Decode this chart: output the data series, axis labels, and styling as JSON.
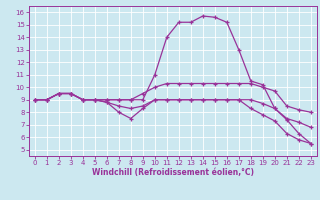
{
  "xlabel": "Windchill (Refroidissement éolien,°C)",
  "xlim": [
    -0.5,
    23.5
  ],
  "ylim": [
    4.5,
    16.5
  ],
  "yticks": [
    5,
    6,
    7,
    8,
    9,
    10,
    11,
    12,
    13,
    14,
    15,
    16
  ],
  "xticks": [
    0,
    1,
    2,
    3,
    4,
    5,
    6,
    7,
    8,
    9,
    10,
    11,
    12,
    13,
    14,
    15,
    16,
    17,
    18,
    19,
    20,
    21,
    22,
    23
  ],
  "color": "#993399",
  "bg_color": "#cce8f0",
  "grid_color": "#ffffff",
  "lines": [
    {
      "x": [
        0,
        1,
        2,
        3,
        4,
        5,
        6,
        7,
        8,
        9,
        10,
        11,
        12,
        13,
        14,
        15,
        16,
        17,
        18,
        19,
        20,
        21,
        22,
        23
      ],
      "y": [
        9.0,
        9.0,
        9.5,
        9.5,
        9.0,
        9.0,
        9.0,
        9.0,
        9.0,
        9.0,
        11.0,
        14.0,
        15.2,
        15.2,
        15.7,
        15.6,
        15.2,
        13.0,
        10.5,
        10.2,
        8.3,
        7.4,
        6.3,
        5.5
      ]
    },
    {
      "x": [
        0,
        1,
        2,
        3,
        4,
        5,
        6,
        7,
        8,
        9,
        10,
        11,
        12,
        13,
        14,
        15,
        16,
        17,
        18,
        19,
        20,
        21,
        22,
        23
      ],
      "y": [
        9.0,
        9.0,
        9.5,
        9.5,
        9.0,
        9.0,
        9.0,
        9.0,
        9.0,
        9.5,
        10.0,
        10.3,
        10.3,
        10.3,
        10.3,
        10.3,
        10.3,
        10.3,
        10.3,
        10.0,
        9.7,
        8.5,
        8.2,
        8.0
      ]
    },
    {
      "x": [
        0,
        1,
        2,
        3,
        4,
        5,
        6,
        7,
        8,
        9,
        10,
        11,
        12,
        13,
        14,
        15,
        16,
        17,
        18,
        19,
        20,
        21,
        22,
        23
      ],
      "y": [
        9.0,
        9.0,
        9.5,
        9.5,
        9.0,
        9.0,
        8.8,
        8.5,
        8.3,
        8.5,
        9.0,
        9.0,
        9.0,
        9.0,
        9.0,
        9.0,
        9.0,
        9.0,
        9.0,
        8.7,
        8.3,
        7.5,
        7.2,
        6.8
      ]
    },
    {
      "x": [
        0,
        1,
        2,
        3,
        4,
        5,
        6,
        7,
        8,
        9,
        10,
        11,
        12,
        13,
        14,
        15,
        16,
        17,
        18,
        19,
        20,
        21,
        22,
        23
      ],
      "y": [
        9.0,
        9.0,
        9.5,
        9.5,
        9.0,
        9.0,
        8.8,
        8.0,
        7.5,
        8.3,
        9.0,
        9.0,
        9.0,
        9.0,
        9.0,
        9.0,
        9.0,
        9.0,
        8.3,
        7.8,
        7.3,
        6.3,
        5.8,
        5.5
      ]
    }
  ]
}
